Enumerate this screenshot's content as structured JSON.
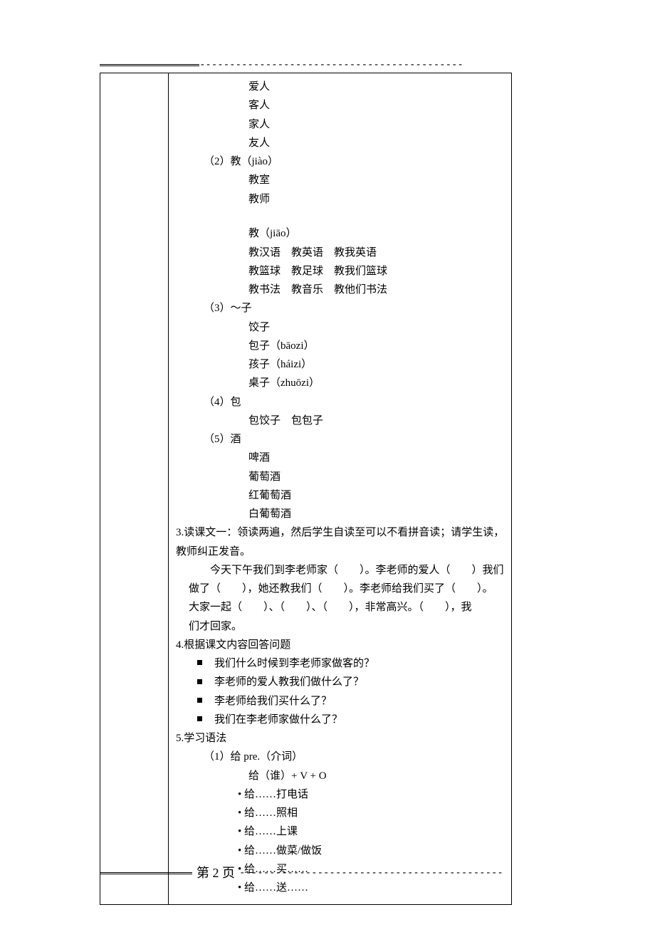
{
  "top_rule_dashes": "--------------------------------------------",
  "vocab": {
    "item1_lines": [
      "爱人",
      "客人",
      "家人",
      "友人"
    ],
    "item2_header": "（2）教（jiào）",
    "item2_lines_a": [
      "教室",
      "教师"
    ],
    "item2_sub": "教（jiāo）",
    "item2_lines_b": [
      "教汉语　教英语　教我英语",
      "教篮球　教足球　教我们篮球",
      "教书法　教音乐　教他们书法"
    ],
    "item3_header": "（3）～子",
    "item3_lines": [
      "饺子",
      "包子（bāozi）",
      "孩子（háizi）",
      "桌子（zhuōzi）"
    ],
    "item4_header": "（4）包",
    "item4_line": "包饺子　包包子",
    "item5_header": "（5）酒",
    "item5_lines": [
      "啤酒",
      "葡萄酒",
      "红葡萄酒",
      "白葡萄酒"
    ]
  },
  "section3": {
    "header": "3.读课文一：领读两遍，然后学生自读至可以不看拼音读；请学生读，",
    "header2": "教师纠正发音。",
    "p1": "今天下午我们到李老师家（　　）。李老师的爱人（　　）我们",
    "p2": "做了（　　），她还教我们（　　）。李老师给我们买了（　　）。",
    "p3": "大家一起（　　）、（　　）、（　　），非常高兴。（　　），我",
    "p4": "们才回家。"
  },
  "section4": {
    "header": "4.根据课文内容回答问题",
    "q1": "我们什么时候到李老师家做客的？",
    "q2": "李老师的爱人教我们做什么了？",
    "q3": "李老师给我们买什么了？",
    "q4": "我们在李老师家做什么了？"
  },
  "section5": {
    "header": "5.学习语法",
    "g1_header": "（1）给 pre.（介词）",
    "g1_formula": "给（谁）+ V + O",
    "g1_items": [
      "给……打电话",
      "给……照相",
      "给……上课",
      "给……做菜/做饭",
      "给……买……",
      "给……送……"
    ]
  },
  "footer": {
    "label": "第 2 页",
    "dashes": "--------------------------------------------"
  }
}
